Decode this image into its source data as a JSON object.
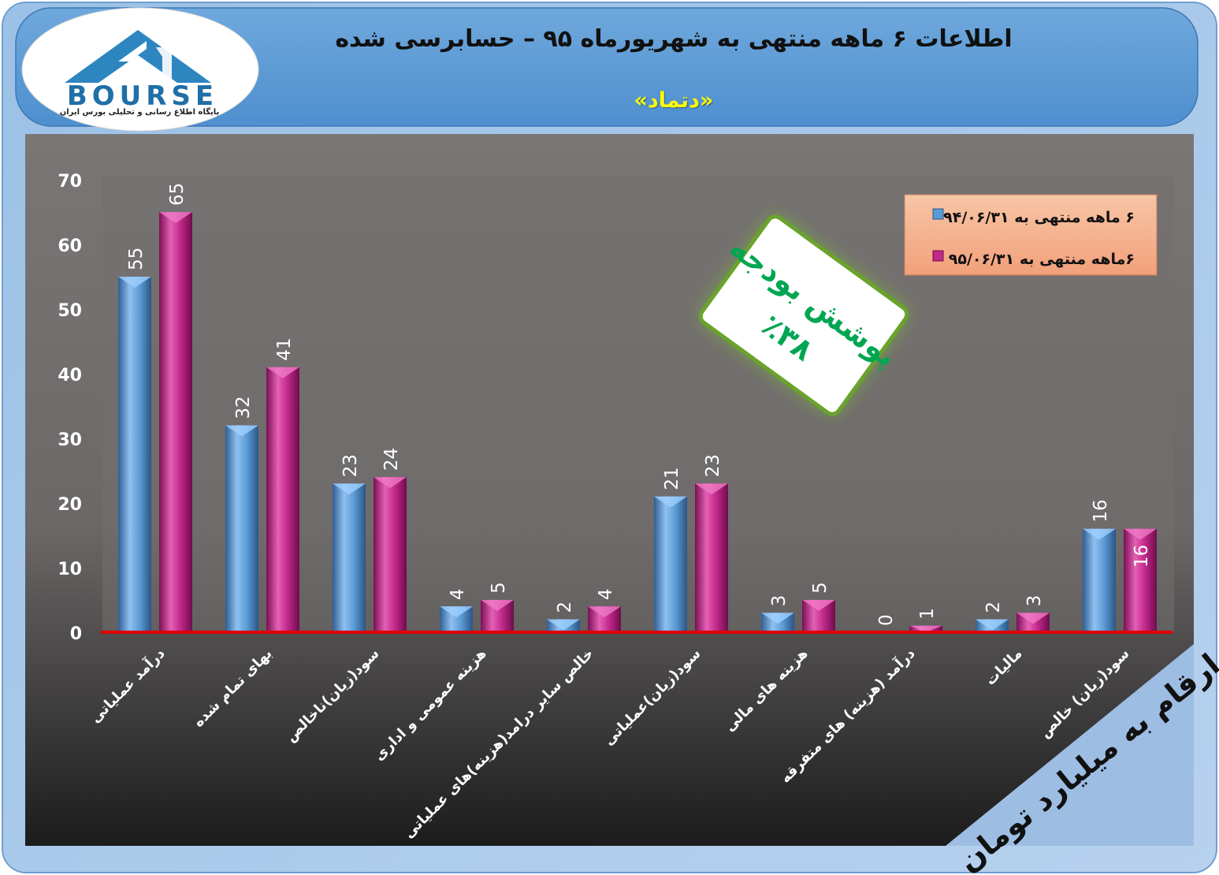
{
  "header": {
    "title": "اطلاعات ۶ ماهه منتهی به شهریورماه ۹۵ – حسابرسی شده",
    "subtitle": "«دتماد»"
  },
  "logo": {
    "word": "BOURSE",
    "tagline": "پایگاه اطلاع رسانی و تحلیلی بورس ایران"
  },
  "budget_box": {
    "line1": "پوشش بودجه",
    "line2": "٪۳۸"
  },
  "units_banner": "ارقام به میلیارد تومان",
  "colors": {
    "series1": "#5b9bd5",
    "series2": "#c0288a",
    "plot_bg": "#726e6e",
    "baseline": "#e00000",
    "header_bg": "#5b9bd5"
  },
  "chart_data": {
    "type": "bar",
    "ylim": [
      0,
      70
    ],
    "yticks": [
      "0",
      "10",
      "20",
      "30",
      "40",
      "50",
      "60",
      "70"
    ],
    "categories": [
      "درآمد عملیاتی",
      "بهای تمام شده",
      "سود(زیان)ناخالص",
      "هزینه عمومی و اداری",
      "خالص سایر درامد(هزینه)های عملیاتی",
      "سود(زیان)عملیاتی",
      "هزینه های مالی",
      "درآمد (هزینه) های متفرقه",
      "مالیات",
      "سود(زیان) خالص"
    ],
    "series": [
      {
        "name": "۶ ماهه منتهی به ۹۴/۰۶/۳۱",
        "values": [
          55,
          32,
          23,
          4,
          2,
          21,
          3,
          0,
          2,
          16
        ]
      },
      {
        "name": "۶ماهه منتهی به ۹۵/۰۶/۳۱",
        "values": [
          65,
          41,
          24,
          5,
          4,
          23,
          5,
          1,
          3,
          16
        ]
      }
    ],
    "legend_position": "top-right",
    "grid": false
  }
}
